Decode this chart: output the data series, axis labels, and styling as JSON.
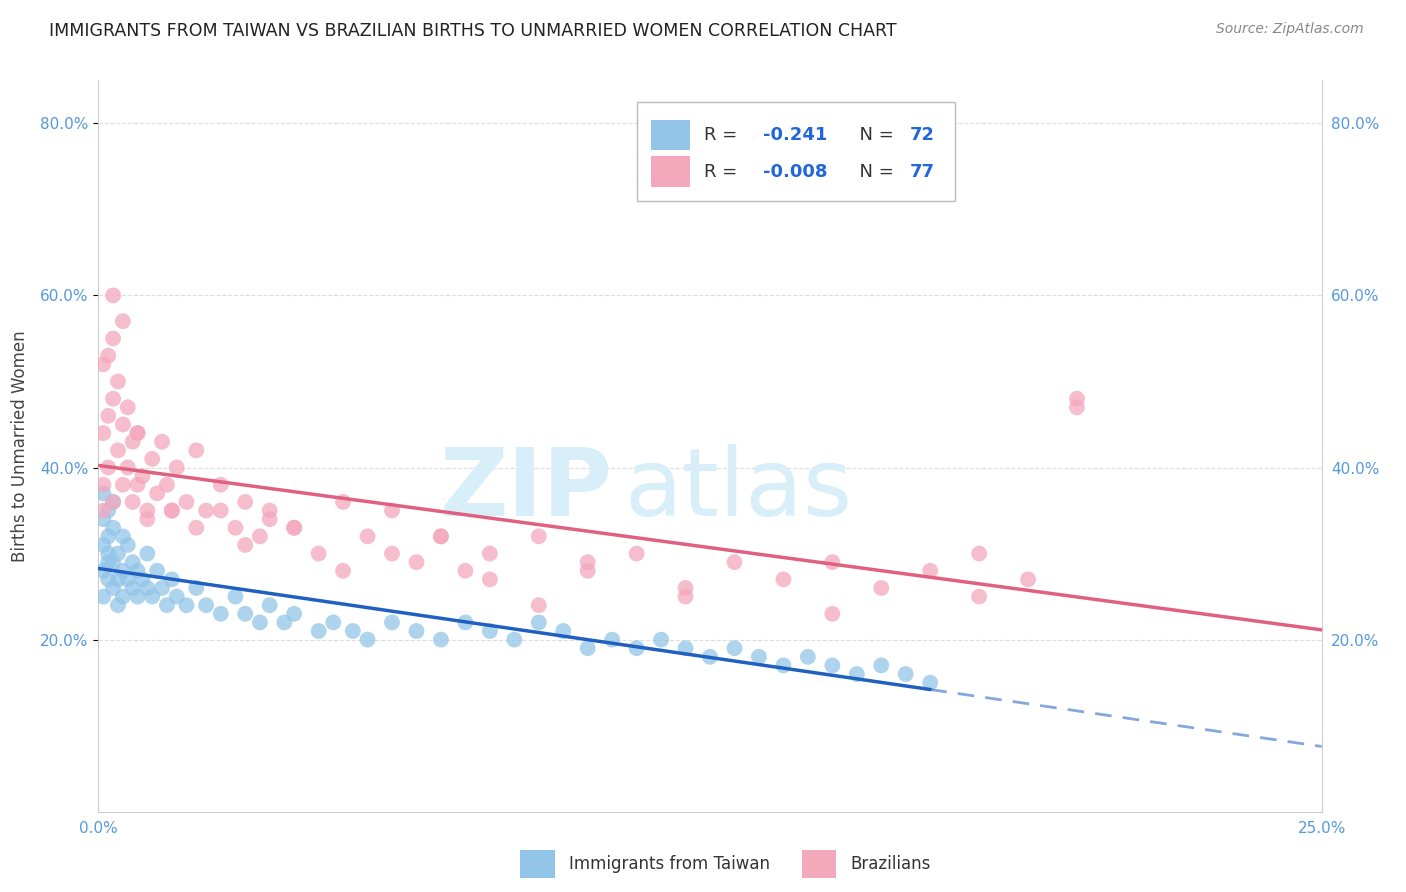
{
  "title": "IMMIGRANTS FROM TAIWAN VS BRAZILIAN BIRTHS TO UNMARRIED WOMEN CORRELATION CHART",
  "source": "Source: ZipAtlas.com",
  "ylabel": "Births to Unmarried Women",
  "xlabel_taiwan": "Immigrants from Taiwan",
  "xlabel_brazilian": "Brazilians",
  "R_taiwan": "-0.241",
  "N_taiwan": "72",
  "R_brazilian": "-0.008",
  "N_brazilian": "77",
  "xlim": [
    0.0,
    0.25
  ],
  "ylim": [
    0.0,
    0.85
  ],
  "yticks": [
    0.2,
    0.4,
    0.6,
    0.8
  ],
  "xticks": [
    0.0,
    0.05,
    0.1,
    0.15,
    0.2,
    0.25
  ],
  "xtick_labels": [
    "0.0%",
    "",
    "",
    "",
    "",
    "25.0%"
  ],
  "color_taiwan": "#92C5E8",
  "color_brazilian": "#F4A8BC",
  "trendline_taiwan_color": "#2060C0",
  "trendline_brazilian_color": "#E06080",
  "watermark_color": "#D8EEF8",
  "tick_color": "#5599DD",
  "background_color": "#ffffff",
  "grid_color": "#DDDDDD",
  "taiwan_x": [
    0.001,
    0.001,
    0.001,
    0.001,
    0.001,
    0.002,
    0.002,
    0.002,
    0.002,
    0.002,
    0.003,
    0.003,
    0.003,
    0.003,
    0.004,
    0.004,
    0.004,
    0.005,
    0.005,
    0.005,
    0.006,
    0.006,
    0.007,
    0.007,
    0.008,
    0.008,
    0.009,
    0.01,
    0.01,
    0.011,
    0.012,
    0.013,
    0.014,
    0.015,
    0.016,
    0.018,
    0.02,
    0.022,
    0.025,
    0.028,
    0.03,
    0.033,
    0.035,
    0.038,
    0.04,
    0.045,
    0.048,
    0.052,
    0.055,
    0.06,
    0.065,
    0.07,
    0.075,
    0.08,
    0.085,
    0.09,
    0.095,
    0.1,
    0.105,
    0.11,
    0.115,
    0.12,
    0.125,
    0.13,
    0.135,
    0.14,
    0.145,
    0.15,
    0.155,
    0.16,
    0.165,
    0.17
  ],
  "taiwan_y": [
    0.28,
    0.31,
    0.34,
    0.37,
    0.25,
    0.29,
    0.32,
    0.35,
    0.27,
    0.3,
    0.26,
    0.29,
    0.33,
    0.36,
    0.27,
    0.3,
    0.24,
    0.28,
    0.32,
    0.25,
    0.27,
    0.31,
    0.26,
    0.29,
    0.25,
    0.28,
    0.27,
    0.26,
    0.3,
    0.25,
    0.28,
    0.26,
    0.24,
    0.27,
    0.25,
    0.24,
    0.26,
    0.24,
    0.23,
    0.25,
    0.23,
    0.22,
    0.24,
    0.22,
    0.23,
    0.21,
    0.22,
    0.21,
    0.2,
    0.22,
    0.21,
    0.2,
    0.22,
    0.21,
    0.2,
    0.22,
    0.21,
    0.19,
    0.2,
    0.19,
    0.2,
    0.19,
    0.18,
    0.19,
    0.18,
    0.17,
    0.18,
    0.17,
    0.16,
    0.17,
    0.16,
    0.15
  ],
  "brazilian_x": [
    0.001,
    0.001,
    0.001,
    0.001,
    0.002,
    0.002,
    0.002,
    0.003,
    0.003,
    0.003,
    0.004,
    0.004,
    0.005,
    0.005,
    0.006,
    0.006,
    0.007,
    0.007,
    0.008,
    0.008,
    0.009,
    0.01,
    0.011,
    0.012,
    0.013,
    0.014,
    0.015,
    0.016,
    0.018,
    0.02,
    0.022,
    0.025,
    0.028,
    0.03,
    0.033,
    0.035,
    0.04,
    0.045,
    0.05,
    0.055,
    0.06,
    0.065,
    0.07,
    0.075,
    0.08,
    0.09,
    0.1,
    0.11,
    0.12,
    0.13,
    0.14,
    0.15,
    0.16,
    0.17,
    0.18,
    0.19,
    0.2,
    0.003,
    0.005,
    0.008,
    0.01,
    0.015,
    0.02,
    0.025,
    0.03,
    0.035,
    0.04,
    0.05,
    0.06,
    0.07,
    0.08,
    0.09,
    0.1,
    0.12,
    0.15,
    0.18,
    0.2
  ],
  "brazilian_y": [
    0.35,
    0.44,
    0.52,
    0.38,
    0.46,
    0.4,
    0.53,
    0.36,
    0.48,
    0.55,
    0.42,
    0.5,
    0.38,
    0.45,
    0.4,
    0.47,
    0.36,
    0.43,
    0.38,
    0.44,
    0.39,
    0.35,
    0.41,
    0.37,
    0.43,
    0.38,
    0.35,
    0.4,
    0.36,
    0.42,
    0.35,
    0.38,
    0.33,
    0.36,
    0.32,
    0.35,
    0.33,
    0.3,
    0.36,
    0.32,
    0.35,
    0.29,
    0.32,
    0.28,
    0.3,
    0.32,
    0.28,
    0.3,
    0.26,
    0.29,
    0.27,
    0.29,
    0.26,
    0.28,
    0.25,
    0.27,
    0.47,
    0.6,
    0.57,
    0.44,
    0.34,
    0.35,
    0.33,
    0.35,
    0.31,
    0.34,
    0.33,
    0.28,
    0.3,
    0.32,
    0.27,
    0.24,
    0.29,
    0.25,
    0.23,
    0.3,
    0.48
  ]
}
